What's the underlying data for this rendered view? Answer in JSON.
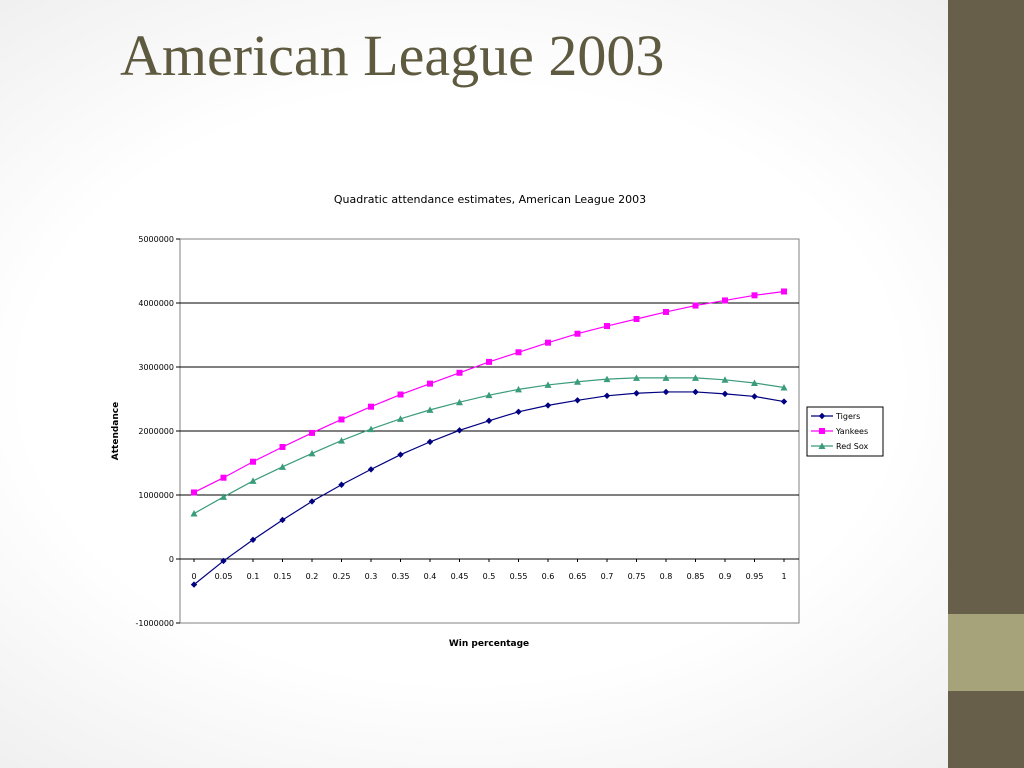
{
  "slide": {
    "title": "American League 2003",
    "colors": {
      "title": "#5e5a40",
      "sidebar": "#675f49",
      "sidebar_accent": "#a6a27a"
    }
  },
  "chart_data": {
    "type": "line",
    "title": "Quadratic attendance estimates, American League 2003",
    "xlabel": "Win percentage",
    "ylabel": "Attendance",
    "x_tick_labels": [
      "0",
      "0.05",
      "0.1",
      "0.15",
      "0.2",
      "0.25",
      "0.3",
      "0.35",
      "0.4",
      "0.45",
      "0.5",
      "0.55",
      "0.6",
      "0.65",
      "0.7",
      "0.75",
      "0.8",
      "0.85",
      "0.9",
      "0.95",
      "1"
    ],
    "y_tick_labels": [
      "5000000",
      "4000000",
      "3000000",
      "2000000",
      "1000000",
      "0",
      "-1000000"
    ],
    "y_ticks": [
      5000000,
      4000000,
      3000000,
      2000000,
      1000000,
      0,
      -1000000
    ],
    "ylim": [
      -1000000,
      5000000
    ],
    "grid": true,
    "legend_position": "right",
    "x": [
      0,
      0.05,
      0.1,
      0.15,
      0.2,
      0.25,
      0.3,
      0.35,
      0.4,
      0.45,
      0.5,
      0.55,
      0.6,
      0.65,
      0.7,
      0.75,
      0.8,
      0.85,
      0.9,
      0.95,
      1
    ],
    "series": [
      {
        "name": "Tigers",
        "color": "#000080",
        "marker": "diamond",
        "values": [
          -400000,
          -30000,
          300000,
          610000,
          900000,
          1160000,
          1400000,
          1630000,
          1830000,
          2010000,
          2160000,
          2300000,
          2400000,
          2480000,
          2550000,
          2590000,
          2610000,
          2610000,
          2580000,
          2540000,
          2460000
        ]
      },
      {
        "name": "Yankees",
        "color": "#ff00ff",
        "marker": "square",
        "values": [
          1040000,
          1270000,
          1520000,
          1750000,
          1970000,
          2180000,
          2380000,
          2570000,
          2740000,
          2910000,
          3080000,
          3230000,
          3380000,
          3520000,
          3640000,
          3750000,
          3860000,
          3960000,
          4040000,
          4120000,
          4180000
        ]
      },
      {
        "name": "Red Sox",
        "color": "#3a9c7c",
        "marker": "triangle",
        "values": [
          710000,
          970000,
          1220000,
          1440000,
          1650000,
          1850000,
          2030000,
          2190000,
          2330000,
          2450000,
          2560000,
          2650000,
          2720000,
          2770000,
          2810000,
          2830000,
          2830000,
          2830000,
          2800000,
          2750000,
          2680000
        ]
      }
    ]
  }
}
